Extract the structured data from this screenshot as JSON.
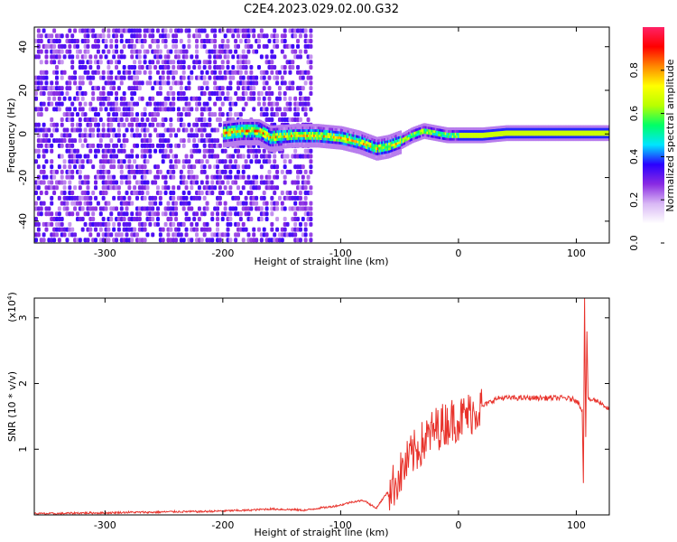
{
  "title": "C2E4.2023.029.02.00.G32",
  "chart_data": [
    {
      "type": "heatmap",
      "xlabel": "Height of straight line (km)",
      "ylabel": "Frequency (Hz)",
      "xlim": [
        -360,
        128
      ],
      "ylim": [
        -50,
        49
      ],
      "xticks": [
        -300,
        -200,
        -100,
        0,
        100
      ],
      "xtick_labels": [
        "-300",
        "-200",
        "-100",
        "0",
        "100"
      ],
      "yticks": [
        -40,
        -20,
        0,
        20,
        40
      ],
      "ytick_labels": [
        "-40",
        "-20",
        "0",
        "20",
        "40"
      ],
      "colorbar": {
        "label": "Normalized spectral amplitude",
        "range": [
          0,
          1
        ],
        "ticks": [
          0.0,
          0.2,
          0.4,
          0.6,
          0.8
        ],
        "tick_labels": [
          "0.0",
          "0.2",
          "0.4",
          "0.6",
          "0.8"
        ],
        "colors": [
          "#ffffff",
          "#ffffff",
          "#d9b8f5",
          "#8a2be2",
          "#2a00ff",
          "#00e5ff",
          "#00ff66",
          "#b8ff00",
          "#ffff00",
          "#ff8800",
          "#ff0000",
          "#ff2266"
        ]
      },
      "noise_region": {
        "x": [
          -360,
          -125
        ],
        "freq_range": [
          -50,
          49
        ]
      },
      "signal_trace": {
        "x": [
          -200,
          -185,
          -170,
          -160,
          -140,
          -120,
          -100,
          -85,
          -70,
          -60,
          -50,
          -40,
          -30,
          -20,
          -10,
          0,
          20,
          40,
          60,
          80,
          100,
          110,
          128
        ],
        "freq": [
          1,
          2,
          2,
          -1,
          0,
          0,
          -1,
          -3,
          -6,
          -5,
          -3,
          0,
          2,
          1,
          0,
          0,
          0,
          1,
          1,
          1,
          1,
          1,
          1
        ]
      },
      "grid": false
    },
    {
      "type": "line",
      "xlabel": "Height of straight line (km)",
      "ylabel": "SNR (10 * v/v)",
      "yscale_note": "(x10^4)",
      "xlim": [
        -360,
        128
      ],
      "ylim": [
        0,
        3.3
      ],
      "xticks": [
        -300,
        -200,
        -100,
        0,
        100
      ],
      "xtick_labels": [
        "-300",
        "-200",
        "-100",
        "0",
        "100"
      ],
      "yticks": [
        1,
        2,
        3
      ],
      "ytick_labels": [
        "1",
        "2",
        "3"
      ],
      "color": "#e8322b",
      "series": [
        {
          "x": [
            -360,
            -340,
            -320,
            -300,
            -280,
            -260,
            -240,
            -220,
            -200,
            -180,
            -160,
            -140,
            -130,
            -120,
            -110,
            -100,
            -90,
            -80,
            -70,
            -60,
            -55,
            -50,
            -45,
            -40,
            -35,
            -30,
            -25,
            -20,
            -15,
            -10,
            -5,
            0,
            5,
            10,
            15,
            20,
            25,
            30,
            35,
            40,
            50,
            60,
            70,
            80,
            90,
            100,
            105,
            106,
            107,
            108,
            109,
            110,
            115,
            120,
            128
          ],
          "values": [
            0.02,
            0.02,
            0.03,
            0.03,
            0.04,
            0.04,
            0.05,
            0.05,
            0.06,
            0.07,
            0.09,
            0.08,
            0.07,
            0.1,
            0.12,
            0.15,
            0.2,
            0.22,
            0.1,
            0.35,
            0.45,
            0.6,
            0.75,
            0.9,
            1.0,
            1.1,
            1.2,
            1.3,
            1.35,
            1.4,
            1.45,
            1.45,
            1.5,
            1.55,
            1.6,
            1.65,
            1.7,
            1.75,
            1.78,
            1.78,
            1.78,
            1.78,
            1.78,
            1.78,
            1.78,
            1.75,
            1.6,
            0.5,
            3.3,
            1.2,
            2.8,
            1.75,
            1.75,
            1.72,
            1.6
          ]
        }
      ],
      "grid": false
    }
  ]
}
